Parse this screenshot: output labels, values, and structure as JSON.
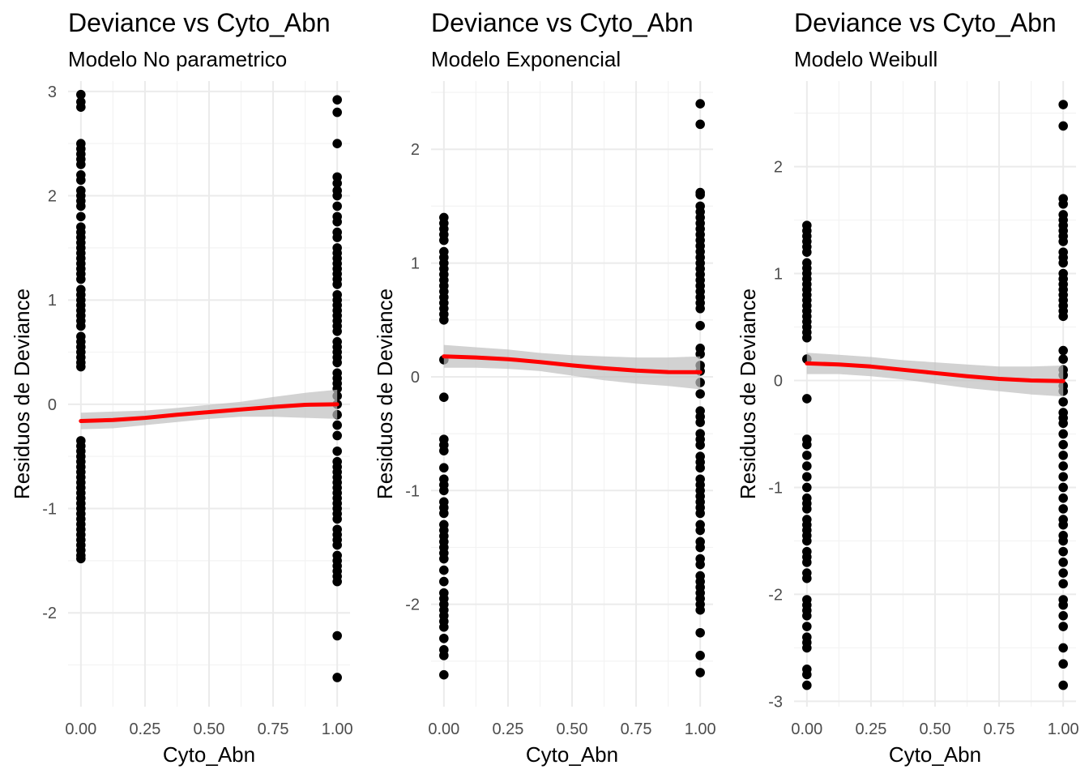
{
  "chart_data": [
    {
      "type": "scatter",
      "title": "Deviance vs  Cyto_Abn",
      "subtitle": "Modelo No parametrico",
      "xlabel": "Cyto_Abn",
      "ylabel": "Residuos de Deviance",
      "xlim": [
        -0.05,
        1.05
      ],
      "ylim": [
        -2.9,
        3.1
      ],
      "x_ticks": [
        0.0,
        0.25,
        0.5,
        0.75,
        1.0
      ],
      "x_tick_labels": [
        "0.00",
        "0.25",
        "0.50",
        "0.75",
        "1.00"
      ],
      "y_ticks": [
        -2,
        -1,
        0,
        1,
        2,
        3
      ],
      "y_tick_labels": [
        "-2",
        "-1",
        "0",
        "1",
        "2",
        "3"
      ],
      "grid": true,
      "colors": {
        "points": "#000000",
        "smooth": "#ff0000",
        "ribbon": "#bfbfbf"
      },
      "series": [
        {
          "x": 0,
          "values": [
            2.97,
            2.9,
            2.85,
            2.5,
            2.45,
            2.4,
            2.35,
            2.3,
            2.2,
            2.15,
            2.05,
            2.0,
            1.95,
            1.9,
            1.8,
            1.7,
            1.65,
            1.6,
            1.55,
            1.5,
            1.45,
            1.4,
            1.35,
            1.3,
            1.25,
            1.2,
            1.1,
            1.05,
            1.0,
            0.95,
            0.9,
            0.85,
            0.8,
            0.75,
            0.65,
            0.6,
            0.55,
            0.5,
            0.45,
            0.4,
            0.36,
            -0.35,
            -0.4,
            -0.45,
            -0.5,
            -0.55,
            -0.6,
            -0.65,
            -0.7,
            -0.75,
            -0.8,
            -0.85,
            -0.9,
            -0.95,
            -1.0,
            -1.05,
            -1.1,
            -1.15,
            -1.2,
            -1.25,
            -1.3,
            -1.35,
            -1.4,
            -1.45,
            -1.48
          ]
        },
        {
          "x": 1,
          "values": [
            2.92,
            2.8,
            2.5,
            2.18,
            2.12,
            2.05,
            2.0,
            1.9,
            1.8,
            1.75,
            1.65,
            1.6,
            1.5,
            1.45,
            1.4,
            1.35,
            1.3,
            1.25,
            1.2,
            1.15,
            1.05,
            1.0,
            0.95,
            0.9,
            0.85,
            0.8,
            0.75,
            0.7,
            0.6,
            0.55,
            0.5,
            0.45,
            0.4,
            0.3,
            0.25,
            0.2,
            0.15,
            0.08,
            0.0,
            -0.1,
            -0.2,
            -0.3,
            -0.45,
            -0.55,
            -0.6,
            -0.65,
            -0.7,
            -0.75,
            -0.8,
            -0.85,
            -0.9,
            -0.95,
            -1.0,
            -1.05,
            -1.1,
            -1.2,
            -1.25,
            -1.3,
            -1.35,
            -1.45,
            -1.5,
            -1.55,
            -1.6,
            -1.65,
            -1.7,
            -2.22,
            -2.62
          ]
        }
      ],
      "smooth": {
        "x": [
          0,
          0.125,
          0.25,
          0.375,
          0.5,
          0.625,
          0.75,
          0.875,
          1.0
        ],
        "y": [
          -0.16,
          -0.15,
          -0.13,
          -0.1,
          -0.075,
          -0.05,
          -0.025,
          -0.005,
          0.0
        ],
        "lower": [
          -0.24,
          -0.23,
          -0.2,
          -0.17,
          -0.14,
          -0.12,
          -0.12,
          -0.13,
          -0.14
        ],
        "upper": [
          -0.08,
          -0.07,
          -0.06,
          -0.035,
          -0.005,
          0.025,
          0.07,
          0.11,
          0.14
        ]
      }
    },
    {
      "type": "scatter",
      "title": "Deviance vs  Cyto_Abn",
      "subtitle": "Modelo Exponencial",
      "xlabel": "Cyto_Abn",
      "ylabel": "Residuos de Deviance",
      "xlim": [
        -0.05,
        1.05
      ],
      "ylim": [
        -2.9,
        2.6
      ],
      "x_ticks": [
        0.0,
        0.25,
        0.5,
        0.75,
        1.0
      ],
      "x_tick_labels": [
        "0.00",
        "0.25",
        "0.50",
        "0.75",
        "1.00"
      ],
      "y_ticks": [
        -2,
        -1,
        0,
        1,
        2
      ],
      "y_tick_labels": [
        "-2",
        "-1",
        "0",
        "1",
        "2"
      ],
      "grid": true,
      "colors": {
        "points": "#000000",
        "smooth": "#ff0000",
        "ribbon": "#bfbfbf"
      },
      "series": [
        {
          "x": 0,
          "values": [
            1.4,
            1.35,
            1.3,
            1.25,
            1.2,
            1.1,
            1.05,
            1.0,
            0.95,
            0.9,
            0.85,
            0.8,
            0.75,
            0.7,
            0.65,
            0.6,
            0.55,
            0.5,
            0.15,
            -0.18,
            -0.55,
            -0.6,
            -0.65,
            -0.8,
            -0.9,
            -0.95,
            -1.0,
            -1.1,
            -1.15,
            -1.2,
            -1.3,
            -1.35,
            -1.4,
            -1.45,
            -1.5,
            -1.55,
            -1.6,
            -1.7,
            -1.8,
            -1.9,
            -1.95,
            -2.0,
            -2.05,
            -2.1,
            -2.15,
            -2.2,
            -2.3,
            -2.4,
            -2.45,
            -2.62
          ]
        },
        {
          "x": 1,
          "values": [
            2.4,
            2.22,
            1.62,
            1.6,
            1.5,
            1.45,
            1.4,
            1.35,
            1.3,
            1.25,
            1.2,
            1.15,
            1.1,
            1.05,
            1.0,
            0.95,
            0.9,
            0.85,
            0.8,
            0.75,
            0.7,
            0.65,
            0.6,
            0.45,
            0.25,
            0.2,
            0.1,
            0.05,
            -0.05,
            -0.15,
            -0.3,
            -0.35,
            -0.4,
            -0.5,
            -0.55,
            -0.6,
            -0.7,
            -0.75,
            -0.8,
            -0.9,
            -0.95,
            -1.0,
            -1.05,
            -1.1,
            -1.15,
            -1.2,
            -1.3,
            -1.35,
            -1.45,
            -1.5,
            -1.6,
            -1.65,
            -1.75,
            -1.8,
            -1.85,
            -1.9,
            -1.95,
            -2.0,
            -2.05,
            -2.25,
            -2.45,
            -2.6
          ]
        }
      ],
      "smooth": {
        "x": [
          0,
          0.125,
          0.25,
          0.375,
          0.5,
          0.625,
          0.75,
          0.875,
          1.0
        ],
        "y": [
          0.18,
          0.17,
          0.155,
          0.13,
          0.1,
          0.075,
          0.055,
          0.042,
          0.04
        ],
        "lower": [
          0.08,
          0.08,
          0.07,
          0.05,
          0.01,
          -0.03,
          -0.06,
          -0.08,
          -0.11
        ],
        "upper": [
          0.28,
          0.26,
          0.24,
          0.21,
          0.19,
          0.18,
          0.17,
          0.17,
          0.18
        ]
      }
    },
    {
      "type": "scatter",
      "title": "Deviance vs  Cyto_Abn",
      "subtitle": "Modelo Weibull",
      "xlabel": "Cyto_Abn",
      "ylabel": "Residuos de Deviance",
      "xlim": [
        -0.05,
        1.05
      ],
      "ylim": [
        -3.05,
        2.8
      ],
      "x_ticks": [
        0.0,
        0.25,
        0.5,
        0.75,
        1.0
      ],
      "x_tick_labels": [
        "0.00",
        "0.25",
        "0.50",
        "0.75",
        "1.00"
      ],
      "y_ticks": [
        -3,
        -2,
        -1,
        0,
        1,
        2
      ],
      "y_tick_labels": [
        "-3",
        "-2",
        "-1",
        "0",
        "1",
        "2"
      ],
      "grid": true,
      "colors": {
        "points": "#000000",
        "smooth": "#ff0000",
        "ribbon": "#bfbfbf"
      },
      "series": [
        {
          "x": 0,
          "values": [
            1.45,
            1.4,
            1.35,
            1.3,
            1.25,
            1.2,
            1.1,
            1.05,
            1.0,
            0.95,
            0.9,
            0.85,
            0.8,
            0.75,
            0.7,
            0.65,
            0.6,
            0.55,
            0.5,
            0.45,
            0.4,
            0.2,
            -0.17,
            -0.55,
            -0.6,
            -0.7,
            -0.8,
            -0.9,
            -1.0,
            -1.1,
            -1.15,
            -1.2,
            -1.3,
            -1.35,
            -1.4,
            -1.45,
            -1.5,
            -1.6,
            -1.65,
            -1.7,
            -1.8,
            -1.85,
            -2.05,
            -2.1,
            -2.15,
            -2.2,
            -2.3,
            -2.4,
            -2.45,
            -2.5,
            -2.7,
            -2.75,
            -2.85
          ]
        },
        {
          "x": 1,
          "values": [
            2.58,
            2.38,
            1.7,
            1.65,
            1.55,
            1.5,
            1.45,
            1.4,
            1.35,
            1.3,
            1.2,
            1.15,
            1.1,
            1.0,
            0.95,
            0.9,
            0.85,
            0.8,
            0.75,
            0.7,
            0.65,
            0.6,
            0.28,
            0.2,
            0.1,
            0.05,
            -0.05,
            -0.1,
            -0.2,
            -0.3,
            -0.35,
            -0.4,
            -0.5,
            -0.6,
            -0.7,
            -0.8,
            -0.9,
            -1.0,
            -1.1,
            -1.2,
            -1.3,
            -1.35,
            -1.45,
            -1.5,
            -1.6,
            -1.7,
            -1.8,
            -1.9,
            -2.05,
            -2.1,
            -2.2,
            -2.3,
            -2.5,
            -2.65,
            -2.85
          ]
        }
      ],
      "smooth": {
        "x": [
          0,
          0.125,
          0.25,
          0.375,
          0.5,
          0.625,
          0.75,
          0.875,
          1.0
        ],
        "y": [
          0.16,
          0.15,
          0.13,
          0.1,
          0.07,
          0.04,
          0.015,
          0.0,
          -0.005
        ],
        "lower": [
          0.06,
          0.06,
          0.04,
          0.01,
          -0.03,
          -0.07,
          -0.1,
          -0.13,
          -0.15
        ],
        "upper": [
          0.26,
          0.24,
          0.22,
          0.19,
          0.17,
          0.15,
          0.13,
          0.13,
          0.14
        ]
      }
    }
  ]
}
